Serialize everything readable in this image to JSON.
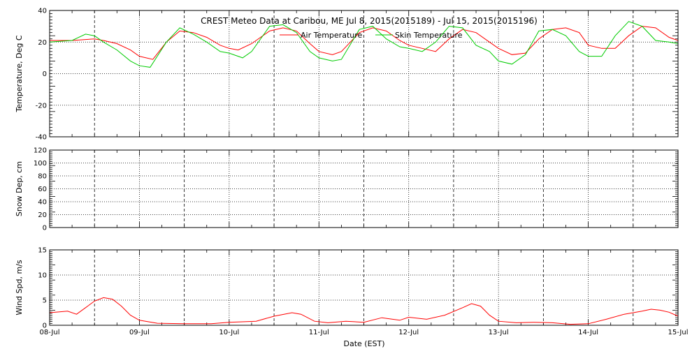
{
  "title": "CREST Meteo Data at Caribou, ME   Jul  8, 2015(2015189) - Jul 15, 2015(2015196)",
  "xlabel": "Date (EST)",
  "legend": [
    {
      "name": "Air Temperature",
      "color": "#ff0000"
    },
    {
      "name": "Skin Temperature",
      "color": "#00cc00"
    }
  ],
  "x_ticks": [
    "08-Jul",
    "09-Jul",
    "10-Jul",
    "11-Jul",
    "12-Jul",
    "13-Jul",
    "14-Jul",
    "15-Jul"
  ],
  "chart_data": [
    {
      "type": "line",
      "ylabel": "Temperature, Deg C",
      "ylim": [
        -40,
        40
      ],
      "yticks": [
        -40,
        -20,
        0,
        20,
        40
      ],
      "grid": true,
      "legend_position": "top-center",
      "x_units": "days since 08-Jul 00:00",
      "series": [
        {
          "name": "Air Temperature",
          "color": "#ff0000",
          "x": [
            0,
            0.25,
            0.5,
            0.6,
            0.75,
            0.9,
            1.0,
            1.15,
            1.3,
            1.45,
            1.6,
            1.75,
            1.9,
            2.0,
            2.1,
            2.25,
            2.45,
            2.6,
            2.75,
            2.9,
            3.0,
            3.15,
            3.25,
            3.45,
            3.6,
            3.75,
            3.9,
            4.0,
            4.15,
            4.3,
            4.45,
            4.6,
            4.75,
            4.9,
            5.0,
            5.15,
            5.3,
            5.45,
            5.6,
            5.75,
            5.9,
            6.0,
            6.15,
            6.3,
            6.45,
            6.6,
            6.75,
            6.9,
            7.0
          ],
          "y": [
            21,
            21,
            22,
            21,
            19,
            15,
            11,
            9,
            20,
            27,
            26,
            23,
            18,
            16,
            15,
            19,
            27,
            29,
            27,
            19,
            14,
            12,
            14,
            26,
            29,
            27,
            21,
            18,
            16,
            14,
            22,
            28,
            26,
            20,
            16,
            12,
            13,
            22,
            28,
            29,
            26,
            18,
            16,
            16,
            24,
            30,
            29,
            23,
            21
          ]
        },
        {
          "name": "Skin Temperature",
          "color": "#00cc00",
          "x": [
            0,
            0.25,
            0.4,
            0.5,
            0.6,
            0.75,
            0.9,
            1.0,
            1.12,
            1.3,
            1.45,
            1.6,
            1.75,
            1.9,
            2.0,
            2.15,
            2.25,
            2.45,
            2.6,
            2.75,
            2.9,
            3.0,
            3.15,
            3.25,
            3.45,
            3.6,
            3.75,
            3.9,
            4.0,
            4.15,
            4.3,
            4.45,
            4.6,
            4.75,
            4.9,
            5.0,
            5.15,
            5.3,
            5.45,
            5.6,
            5.75,
            5.9,
            6.0,
            6.15,
            6.3,
            6.45,
            6.6,
            6.75,
            6.9,
            7.0
          ],
          "y": [
            20,
            21,
            25,
            24,
            20,
            15,
            8,
            5,
            4,
            20,
            29,
            25,
            20,
            14,
            13,
            10,
            14,
            30,
            31,
            26,
            14,
            10,
            8,
            9,
            28,
            30,
            22,
            17,
            16,
            14,
            20,
            30,
            29,
            18,
            14,
            8,
            6,
            12,
            27,
            28,
            24,
            14,
            11,
            11,
            24,
            33,
            30,
            21,
            20,
            19
          ]
        }
      ]
    },
    {
      "type": "line",
      "ylabel": "Snow Dep, cm",
      "ylim": [
        0,
        120
      ],
      "yticks": [
        0,
        20,
        40,
        60,
        80,
        100,
        120
      ],
      "grid": true,
      "series": []
    },
    {
      "type": "line",
      "ylabel": "Wind Spd, m/s",
      "ylim": [
        0,
        15
      ],
      "yticks": [
        0,
        5,
        10,
        15
      ],
      "grid": true,
      "series": [
        {
          "name": "",
          "color": "#ff0000",
          "x": [
            0,
            0.2,
            0.3,
            0.4,
            0.5,
            0.6,
            0.7,
            0.8,
            0.9,
            1.0,
            1.2,
            1.5,
            1.8,
            2.0,
            2.3,
            2.5,
            2.7,
            2.8,
            2.95,
            3.1,
            3.3,
            3.5,
            3.7,
            3.9,
            4.0,
            4.2,
            4.4,
            4.6,
            4.7,
            4.8,
            4.9,
            5.0,
            5.2,
            5.4,
            5.6,
            5.8,
            6.0,
            6.2,
            6.4,
            6.6,
            6.7,
            6.8,
            6.9,
            7.0
          ],
          "y": [
            2.5,
            2.8,
            2.2,
            3.5,
            4.8,
            5.5,
            5.2,
            3.8,
            2.0,
            1.0,
            0.4,
            0.3,
            0.3,
            0.6,
            0.8,
            1.8,
            2.5,
            2.2,
            0.8,
            0.5,
            0.8,
            0.6,
            1.5,
            1.0,
            1.6,
            1.2,
            2.0,
            3.5,
            4.3,
            3.8,
            2.0,
            0.8,
            0.5,
            0.6,
            0.5,
            0.2,
            0.3,
            1.2,
            2.2,
            2.8,
            3.2,
            3.0,
            2.6,
            1.8
          ]
        }
      ]
    }
  ]
}
